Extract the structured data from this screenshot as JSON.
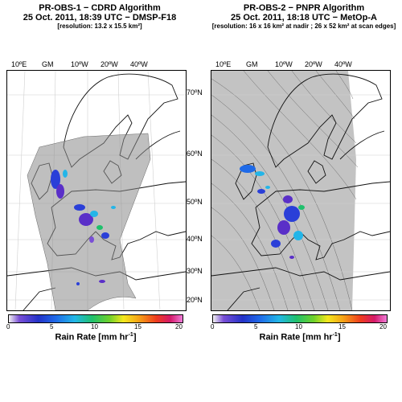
{
  "left": {
    "title_line1": "PR-OBS-1 − CDRD Algorithm",
    "title_line2": "25 Oct. 2011, 18:39 UTC − DMSP-F18",
    "resolution": "[resolution: 13.2 x 15.5 km²]"
  },
  "right": {
    "title_line1": "PR-OBS-2 − PNPR Algorithm",
    "title_line2": "25 Oct. 2011, 18:18 UTC −  MetOp-A",
    "resolution": "[resolution: 16 x 16 km² at nadir ; 26 x 52 km² at scan edges]"
  },
  "lon_labels": [
    "10ºE",
    "GM",
    "10ºW",
    "20ºW",
    "40ºW"
  ],
  "lat_labels": [
    "70ºN",
    "60ºN",
    "50ºN",
    "40ºN",
    "30ºN",
    "20ºN"
  ],
  "colorbar": {
    "ticks": [
      "0",
      "5",
      "10",
      "15",
      "20"
    ],
    "label": "Rain Rate [mm hr",
    "label_exp": "-1",
    "label_end": "]",
    "range": [
      0,
      20
    ],
    "colors": [
      "#f2f2f2",
      "#7a4fd6",
      "#2432c8",
      "#1f6ae8",
      "#22b7e6",
      "#1fc06c",
      "#6fd12a",
      "#f4e71d",
      "#f5a116",
      "#ee3b1e",
      "#d41a6a",
      "#f07bd8"
    ]
  }
}
